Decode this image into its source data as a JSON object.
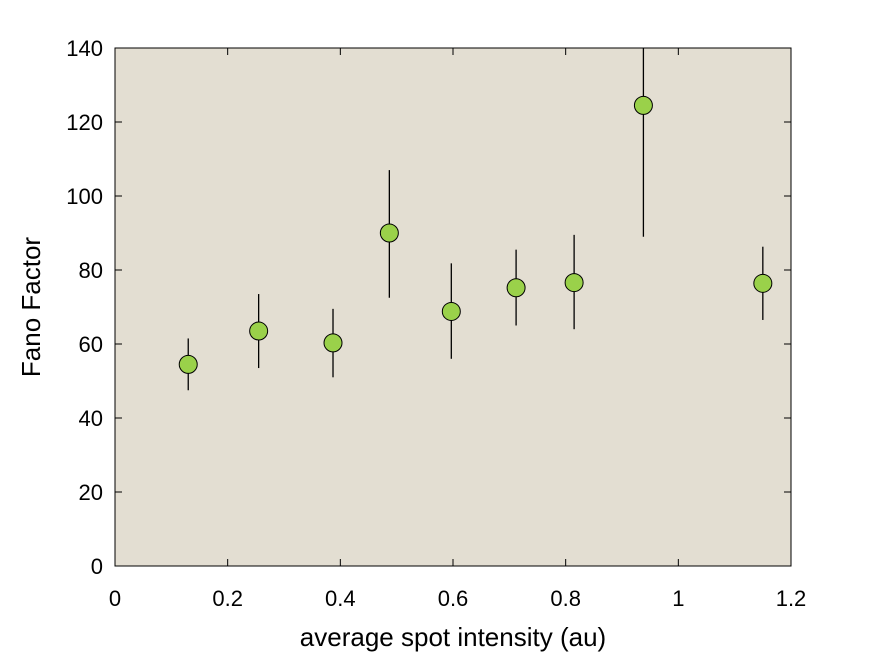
{
  "chart_data": {
    "type": "scatter",
    "title": "",
    "xlabel": "average spot intensity (au)",
    "ylabel": "Fano Factor",
    "xlim": [
      0,
      1.2
    ],
    "ylim": [
      0,
      140
    ],
    "xticks": [
      0,
      0.2,
      0.4,
      0.6,
      0.8,
      1,
      1.2
    ],
    "xtick_labels": [
      "0",
      "0.2",
      "0.4",
      "0.6",
      "0.8",
      "1",
      "1.2"
    ],
    "yticks": [
      0,
      20,
      40,
      60,
      80,
      100,
      120,
      140
    ],
    "ytick_labels": [
      "0",
      "20",
      "40",
      "60",
      "80",
      "100",
      "120",
      "140"
    ],
    "grid": false,
    "legend": "none",
    "points": [
      {
        "x": 0.13,
        "y": 54.5,
        "err_low": 47.5,
        "err_high": 61.5
      },
      {
        "x": 0.255,
        "y": 63.5,
        "err_low": 53.5,
        "err_high": 73.5
      },
      {
        "x": 0.387,
        "y": 60.3,
        "err_low": 51.0,
        "err_high": 69.5
      },
      {
        "x": 0.487,
        "y": 90.0,
        "err_low": 72.5,
        "err_high": 107.0
      },
      {
        "x": 0.597,
        "y": 68.8,
        "err_low": 56.0,
        "err_high": 81.8
      },
      {
        "x": 0.712,
        "y": 75.2,
        "err_low": 65.0,
        "err_high": 85.5
      },
      {
        "x": 0.815,
        "y": 76.6,
        "err_low": 64.0,
        "err_high": 89.5
      },
      {
        "x": 0.938,
        "y": 124.5,
        "err_low": 89.0,
        "err_high": 140.0
      },
      {
        "x": 1.15,
        "y": 76.4,
        "err_low": 66.5,
        "err_high": 86.3
      }
    ],
    "colors": {
      "plot_background": "#e3ded2",
      "marker_fill": "#9ad14a",
      "marker_edge": "#000000",
      "error_bar": "#000000"
    }
  }
}
